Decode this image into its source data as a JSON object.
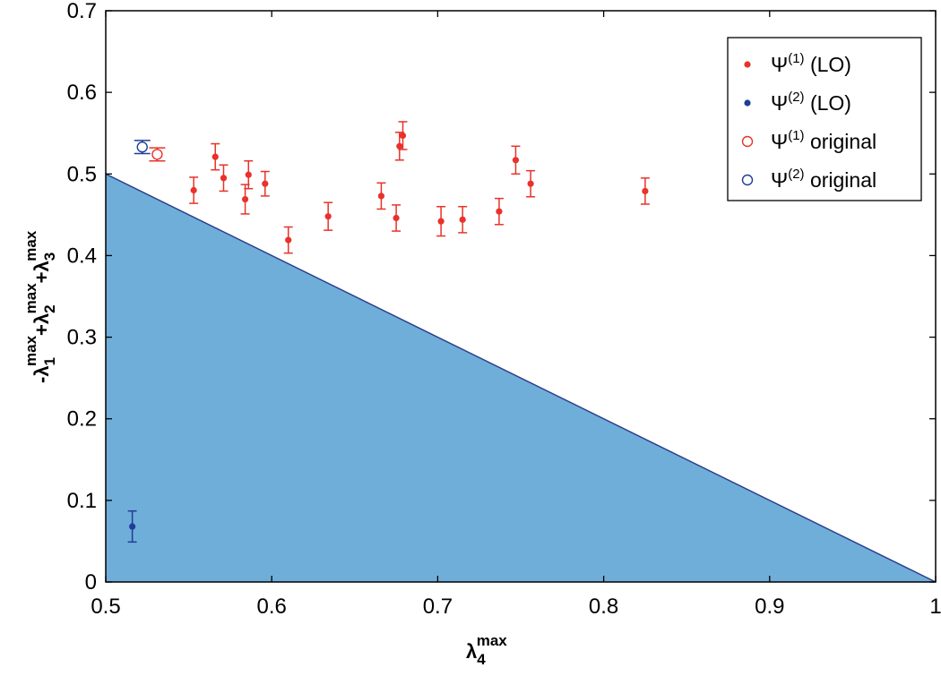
{
  "chart_data": {
    "type": "scatter",
    "title": "",
    "xlabel": {
      "base": "λ",
      "sub": "4",
      "sup": "max"
    },
    "ylabel": {
      "parts": [
        {
          "prefix": "-",
          "base": "λ",
          "sub": "1",
          "sup": "max"
        },
        {
          "prefix": "+",
          "base": "λ",
          "sub": "2",
          "sup": "max"
        },
        {
          "prefix": "+",
          "base": "λ",
          "sub": "3",
          "sup": "max"
        }
      ]
    },
    "xlim": [
      0.5,
      1
    ],
    "ylim": [
      0,
      0.7
    ],
    "xticks": [
      0.5,
      0.6,
      0.7,
      0.8,
      0.9,
      1
    ],
    "xtick_labels": [
      "0.5",
      "0.6",
      "0.7",
      "0.8",
      "0.9",
      "1"
    ],
    "yticks": [
      0,
      0.1,
      0.2,
      0.3,
      0.4,
      0.5,
      0.6,
      0.7
    ],
    "ytick_labels": [
      "0",
      "0.1",
      "0.2",
      "0.3",
      "0.4",
      "0.5",
      "0.6",
      "0.7"
    ],
    "grid": false,
    "legend_position": "top-right",
    "region": {
      "fill_color": "#6faed8",
      "edge_color": "#2c3e8c",
      "boundary": [
        [
          0.5,
          0.5
        ],
        [
          1,
          0
        ]
      ]
    },
    "series": [
      {
        "name": "Ψ(1) (LO)",
        "legend": {
          "base": "Ψ",
          "sup": "(1)",
          "rest": " (LO)"
        },
        "marker": "dot",
        "color": "#e8322a",
        "x": [
          0.553,
          0.566,
          0.571,
          0.584,
          0.586,
          0.596,
          0.61,
          0.634,
          0.666,
          0.675,
          0.677,
          0.679,
          0.702,
          0.715,
          0.737,
          0.747,
          0.756,
          0.825
        ],
        "y": [
          0.48,
          0.521,
          0.495,
          0.469,
          0.499,
          0.488,
          0.419,
          0.448,
          0.473,
          0.446,
          0.534,
          0.547,
          0.442,
          0.444,
          0.454,
          0.517,
          0.488,
          0.479
        ],
        "err": [
          0.016,
          0.016,
          0.016,
          0.018,
          0.017,
          0.015,
          0.016,
          0.017,
          0.016,
          0.016,
          0.017,
          0.017,
          0.018,
          0.016,
          0.016,
          0.017,
          0.016,
          0.016
        ]
      },
      {
        "name": "Ψ(2) (LO)",
        "legend": {
          "base": "Ψ",
          "sup": "(2)",
          "rest": " (LO)"
        },
        "marker": "dot",
        "color": "#1f3d99",
        "x": [
          0.516
        ],
        "y": [
          0.068
        ],
        "err": [
          0.019
        ]
      },
      {
        "name": "Ψ(1) original",
        "legend": {
          "base": "Ψ",
          "sup": "(1)",
          "rest": " original"
        },
        "marker": "circle",
        "color": "#e8322a",
        "x": [
          0.531
        ],
        "y": [
          0.524
        ],
        "err": [
          0.008
        ]
      },
      {
        "name": "Ψ(2) original",
        "legend": {
          "base": "Ψ",
          "sup": "(2)",
          "rest": " original"
        },
        "marker": "circle",
        "color": "#1f3d99",
        "x": [
          0.522
        ],
        "y": [
          0.533
        ],
        "err": [
          0.008
        ]
      }
    ]
  }
}
